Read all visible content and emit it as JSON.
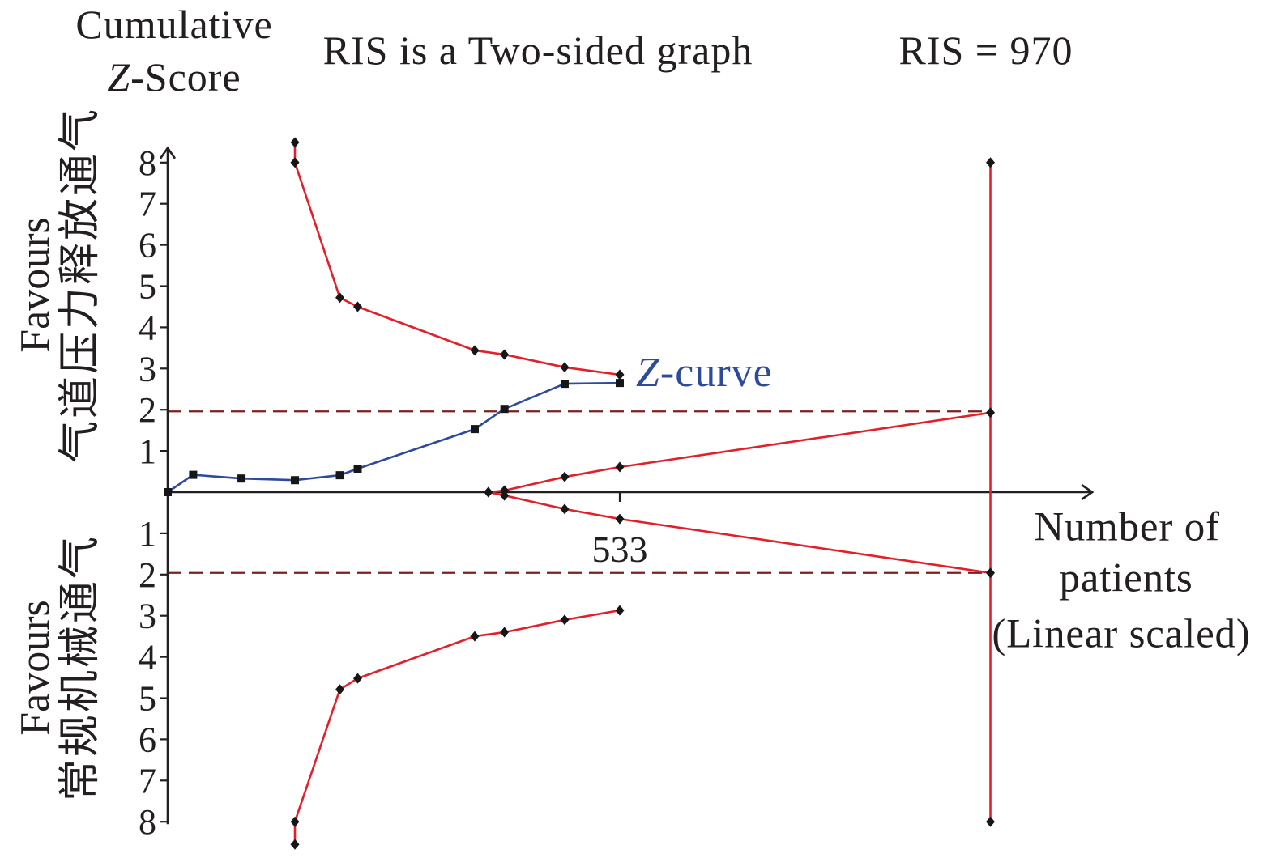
{
  "chart_data": {
    "type": "line",
    "title": "RIS is a Two-sided graph",
    "annotation": "RIS = 970",
    "ylabel": [
      "Cumulative",
      "Z-Score"
    ],
    "y_side_labels": [
      [
        "Favours",
        "气道压力释放通气"
      ],
      [
        "Favours",
        "常规机械通气"
      ]
    ],
    "xlabel": [
      "Number of",
      "patients",
      "(Linear scaled)"
    ],
    "xlim": [
      0,
      1090
    ],
    "ylim": [
      -8,
      8
    ],
    "grid": false,
    "x_ticks": [
      {
        "value": 533,
        "label": "533"
      }
    ],
    "y_ticks": [
      {
        "value": 8,
        "label": "8"
      },
      {
        "value": 7,
        "label": "7"
      },
      {
        "value": 6,
        "label": "6"
      },
      {
        "value": 5,
        "label": "5"
      },
      {
        "value": 4,
        "label": "4"
      },
      {
        "value": 3,
        "label": "3"
      },
      {
        "value": 2,
        "label": "2"
      },
      {
        "value": 1,
        "label": "1"
      },
      {
        "value": -1,
        "label": "1"
      },
      {
        "value": -2,
        "label": "2"
      },
      {
        "value": -3,
        "label": "3"
      },
      {
        "value": -4,
        "label": "4"
      },
      {
        "value": -5,
        "label": "5"
      },
      {
        "value": -6,
        "label": "6"
      },
      {
        "value": -7,
        "label": "7"
      },
      {
        "value": -8,
        "label": "8"
      }
    ],
    "series": [
      {
        "name": "Z-curve",
        "color": "#2d4a9b",
        "marker": "square",
        "marker_color": "#161616",
        "points": [
          [
            0,
            0
          ],
          [
            30,
            0.42
          ],
          [
            87,
            0.33
          ],
          [
            150,
            0.29
          ],
          [
            203,
            0.41
          ],
          [
            224,
            0.57
          ],
          [
            362,
            1.53
          ],
          [
            397,
            2.02
          ],
          [
            468,
            2.63
          ],
          [
            533,
            2.65
          ]
        ]
      },
      {
        "color": "#e2202b",
        "marker": "diamond",
        "marker_color": "#161616",
        "points": [
          [
            150,
            8.49
          ],
          [
            150,
            8.0
          ],
          [
            203,
            4.72
          ],
          [
            224,
            4.5
          ],
          [
            362,
            3.44
          ],
          [
            397,
            3.34
          ],
          [
            468,
            3.03
          ],
          [
            533,
            2.85
          ]
        ]
      },
      {
        "color": "#e2202b",
        "marker": "diamond",
        "marker_color": "#161616",
        "points": [
          [
            150,
            -8.55
          ],
          [
            150,
            -8.0
          ],
          [
            203,
            -4.79
          ],
          [
            224,
            -4.52
          ],
          [
            362,
            -3.5
          ],
          [
            397,
            -3.4
          ],
          [
            468,
            -3.1
          ],
          [
            533,
            -2.87
          ]
        ]
      },
      {
        "color": "#e2202b",
        "marker": "diamond",
        "marker_color": "#161616",
        "points": [
          [
            378,
            0
          ],
          [
            397,
            0.04
          ],
          [
            468,
            0.37
          ],
          [
            533,
            0.61
          ],
          [
            970,
            1.93
          ]
        ]
      },
      {
        "color": "#e2202b",
        "marker": "diamond",
        "marker_color": "#161616",
        "points": [
          [
            378,
            0
          ],
          [
            397,
            -0.08
          ],
          [
            468,
            -0.41
          ],
          [
            533,
            -0.65
          ],
          [
            970,
            -1.96
          ]
        ]
      },
      {
        "color": "#e2202b",
        "marker": "diamond",
        "marker_color": "#161616",
        "points": [
          [
            970,
            8
          ],
          [
            970,
            -8
          ]
        ]
      }
    ],
    "reference_lines": [
      {
        "y": 1.96,
        "x_range": [
          0,
          970
        ],
        "style": "dashed",
        "color": "#7c2021"
      },
      {
        "y": -1.96,
        "x_range": [
          0,
          970
        ],
        "style": "dashed",
        "color": "#7c2021"
      }
    ]
  }
}
